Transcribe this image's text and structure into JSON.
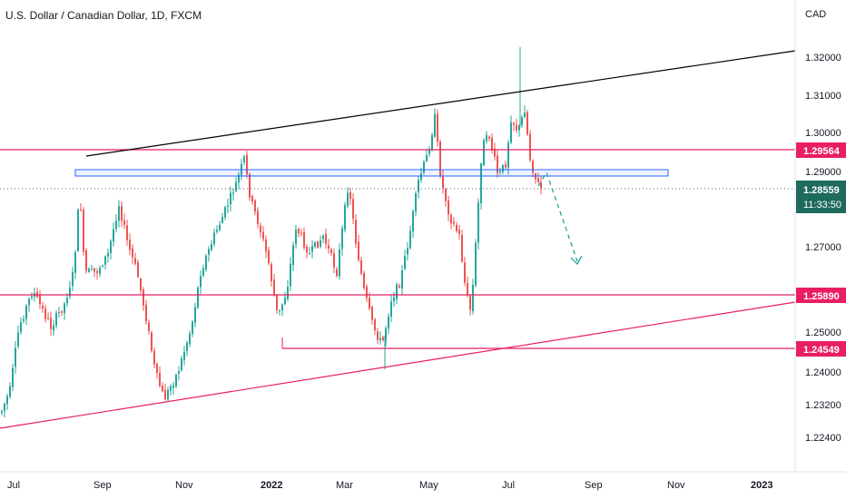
{
  "chart_data": {
    "type": "candlestick",
    "title": "U.S. Dollar / Canadian Dollar, 1D, FXCM",
    "currency_label": "CAD",
    "price_ticks": [
      "1.32000",
      "1.31000",
      "1.30000",
      "1.29000",
      "1.27000",
      "1.25000",
      "1.24000",
      "1.23200",
      "1.22400"
    ],
    "x_tick_labels": [
      "Jul",
      "Sep",
      "Nov",
      "2022",
      "Mar",
      "May",
      "Jul",
      "Sep",
      "Nov",
      "2023"
    ],
    "current_price": {
      "value": "1.28559",
      "countdown": "11:33:50"
    },
    "levels": [
      {
        "value": "1.29564",
        "color": "#e91e63"
      },
      {
        "value": "1.25890",
        "color": "#e91e63"
      },
      {
        "value": "1.24549",
        "color": "#e91e63"
      }
    ],
    "colors": {
      "up": "#26a69a",
      "down": "#ef5350",
      "current": "#1e6b5e",
      "zone": "#2962ff",
      "upper_trendline": "#000000",
      "lower_trendline": "#e91e63",
      "projection": "#26a69a"
    }
  }
}
